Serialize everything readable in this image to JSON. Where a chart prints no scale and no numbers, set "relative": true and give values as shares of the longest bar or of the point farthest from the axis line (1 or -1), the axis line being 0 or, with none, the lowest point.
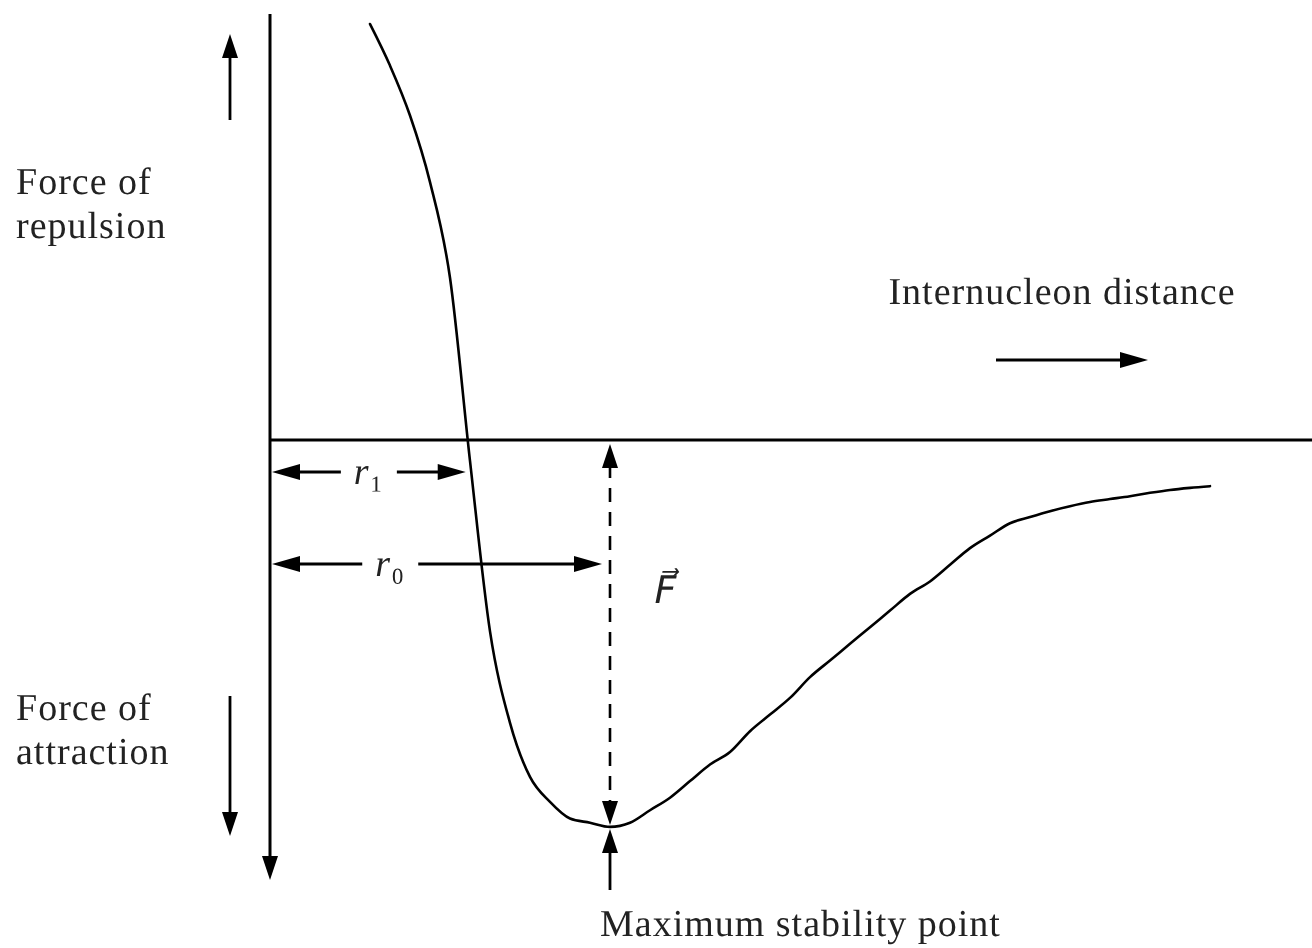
{
  "chart_data": {
    "type": "line",
    "relative": true,
    "xlabel": "Internucleon distance",
    "categories": [
      null,
      null,
      null,
      null,
      null,
      null,
      null,
      null,
      null,
      null,
      null,
      null,
      null,
      null,
      null,
      null,
      null,
      null,
      null,
      null,
      null,
      null,
      null,
      null,
      null,
      null,
      null,
      null,
      null,
      null,
      null,
      null,
      null,
      null,
      null,
      null,
      null,
      null,
      null,
      null,
      null,
      null,
      null,
      null,
      null,
      null,
      null,
      null,
      null,
      null,
      null
    ],
    "series": [
      {
        "color": "#000000",
        "values": [
          null,
          null,
          null,
          null,
          null,
          1.0,
          0.9,
          0.78,
          0.62,
          0.39,
          -0.05,
          -0.46,
          -0.68,
          -0.81,
          -0.87,
          -0.91,
          -0.92,
          -0.93,
          -0.92,
          -0.89,
          -0.86,
          -0.82,
          -0.78,
          -0.75,
          -0.7,
          -0.66,
          -0.62,
          -0.57,
          -0.53,
          -0.49,
          -0.45,
          -0.41,
          -0.37,
          -0.34,
          -0.3,
          -0.26,
          -0.23,
          -0.2,
          -0.185,
          -0.171,
          -0.159,
          -0.149,
          -0.142,
          -0.135,
          -0.127,
          -0.12,
          -0.115,
          -0.111,
          null,
          null,
          null
        ]
      }
    ],
    "annotations": [
      "Force of repulsion",
      "Force of attraction",
      "r₁",
      "r₀",
      "F⃗",
      "Maximum stability point"
    ]
  }
}
